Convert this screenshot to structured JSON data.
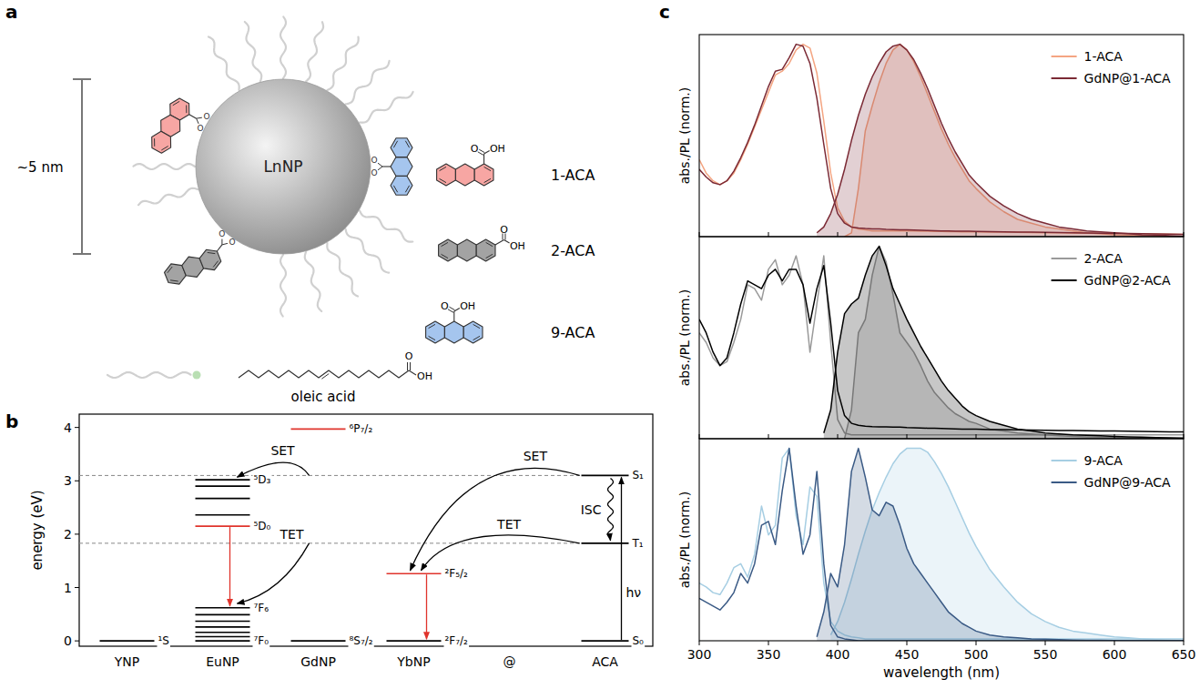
{
  "panel_labels": [
    "a",
    "b",
    "c"
  ],
  "schematic": {
    "particle": "LnNP",
    "size": "~5 nm",
    "ligands": [
      {
        "name": "1-ACA",
        "color": "#f7a6a3"
      },
      {
        "name": "2-ACA",
        "color": "#a3a3a3"
      },
      {
        "name": "9-ACA",
        "color": "#a5c5ee"
      }
    ],
    "capping": "oleic acid",
    "oxygen": "O",
    "hydroxyl": "OH"
  },
  "chart_data": [
    {
      "type": "energy_levels",
      "ylabel": "energy (eV)",
      "ylim": [
        -0.1,
        4.25
      ],
      "yticks": [
        0,
        1,
        2,
        3,
        4
      ],
      "categories": [
        "YNP",
        "EuNP",
        "GdNP",
        "YbNP",
        "@",
        "ACA"
      ],
      "levels": [
        [
          {
            "energy": 0,
            "label": "¹S",
            "color": "#000000"
          }
        ],
        [
          {
            "energy": 0,
            "label": "⁷F₀",
            "color": "#000000"
          },
          {
            "energy": 0.08,
            "color": "#000000"
          },
          {
            "energy": 0.16,
            "color": "#000000"
          },
          {
            "energy": 0.26,
            "color": "#000000"
          },
          {
            "energy": 0.37,
            "color": "#000000"
          },
          {
            "energy": 0.49,
            "color": "#000000"
          },
          {
            "energy": 0.62,
            "label": "⁷F₆",
            "color": "#000000"
          },
          {
            "energy": 2.15,
            "label": "⁵D₀",
            "color": "#e0342c"
          },
          {
            "energy": 2.36,
            "color": "#000000"
          },
          {
            "energy": 2.67,
            "color": "#000000"
          },
          {
            "energy": 2.9,
            "color": "#000000"
          },
          {
            "energy": 3.02,
            "label": "⁵D₃",
            "color": "#000000"
          }
        ],
        [
          {
            "energy": 0,
            "label": "⁸S₇/₂",
            "color": "#000000"
          },
          {
            "energy": 3.97,
            "label": "⁶P₇/₂",
            "color": "#e0342c"
          }
        ],
        [
          {
            "energy": 0,
            "label": "²F₇/₂",
            "color": "#000000"
          },
          {
            "energy": 1.26,
            "label": "²F₅/₂",
            "color": "#e0342c"
          }
        ],
        [],
        [
          {
            "energy": 0,
            "label": "S₀",
            "color": "#000000"
          },
          {
            "energy": 1.83,
            "label": "T₁",
            "color": "#000000"
          },
          {
            "energy": 3.1,
            "label": "S₁",
            "color": "#000000"
          }
        ]
      ],
      "annotations": [
        "SET",
        "TET",
        "SET",
        "TET",
        "ISC",
        "hν"
      ]
    },
    {
      "type": "line",
      "x": [
        300,
        305,
        310,
        315,
        320,
        325,
        330,
        335,
        340,
        345,
        350,
        355,
        360,
        365,
        370,
        375,
        380,
        385,
        390,
        395,
        400,
        405,
        410,
        415,
        420,
        425,
        430,
        435,
        440,
        445,
        450,
        455,
        460,
        465,
        470,
        475,
        480,
        485,
        490,
        495,
        500,
        510,
        520,
        530,
        540,
        550,
        560,
        570,
        580,
        590,
        600,
        610,
        620,
        630,
        640,
        650
      ],
      "xlim": [
        300,
        650
      ],
      "xticks": [
        300,
        350,
        400,
        450,
        500,
        550,
        600,
        650
      ],
      "ylim": [
        0,
        1.05
      ],
      "ylabel": "abs./PL (norm.)",
      "tick_labels": false,
      "legend": "upper right",
      "series": [
        {
          "name": "1-ACA",
          "color": "#f4a582",
          "absorption": [
            0.4,
            0.33,
            0.29,
            0.27,
            0.29,
            0.33,
            0.4,
            0.48,
            0.57,
            0.66,
            0.75,
            0.84,
            0.86,
            0.9,
            0.97,
            1.0,
            0.98,
            0.85,
            0.6,
            0.33,
            0.15,
            0.08,
            0.05,
            0.04,
            0.035,
            0.03,
            0.03,
            0.03,
            0.03,
            0.03,
            0.03,
            0.03,
            0.028,
            0.028,
            0.027,
            0.027,
            0.026,
            0.026,
            0.025,
            0.025,
            0.025,
            0.024,
            0.023,
            0.022,
            0.021,
            0.02,
            0.02,
            0.019,
            0.018,
            0.017,
            0.016,
            0.015,
            0.015,
            0.014,
            0.013,
            0.012
          ],
          "emission": [
            null,
            null,
            null,
            null,
            null,
            null,
            null,
            null,
            null,
            null,
            null,
            null,
            null,
            null,
            null,
            null,
            null,
            null,
            null,
            null,
            null,
            0.0,
            0.02,
            0.25,
            0.55,
            0.68,
            0.8,
            0.9,
            0.97,
            1.0,
            0.97,
            0.91,
            0.83,
            0.74,
            0.65,
            0.56,
            0.48,
            0.41,
            0.35,
            0.29,
            0.25,
            0.18,
            0.13,
            0.09,
            0.07,
            0.05,
            0.04,
            0.03,
            0.02,
            0.015,
            0.01,
            0.008,
            0.006,
            0.004,
            0.002,
            0.0
          ]
        },
        {
          "name": "GdNP@1-ACA",
          "color": "#7b2a35",
          "absorption": [
            0.35,
            0.31,
            0.28,
            0.27,
            0.29,
            0.34,
            0.41,
            0.49,
            0.58,
            0.68,
            0.78,
            0.86,
            0.87,
            0.93,
            1.0,
            0.99,
            0.9,
            0.72,
            0.48,
            0.25,
            0.12,
            0.07,
            0.05,
            0.045,
            0.042,
            0.04,
            0.04,
            0.038,
            0.037,
            0.036,
            0.035,
            0.034,
            0.033,
            0.032,
            0.031,
            0.03,
            0.03,
            0.029,
            0.028,
            0.028,
            0.027,
            0.026,
            0.025,
            0.024,
            0.023,
            0.022,
            0.021,
            0.02,
            0.019,
            0.018,
            0.017,
            0.016,
            0.015,
            0.014,
            0.013,
            0.012
          ],
          "emission": [
            null,
            null,
            null,
            null,
            null,
            null,
            null,
            null,
            null,
            null,
            null,
            null,
            null,
            null,
            null,
            null,
            null,
            0.02,
            0.05,
            0.12,
            0.22,
            0.35,
            0.5,
            0.63,
            0.74,
            0.83,
            0.9,
            0.96,
            0.99,
            1.0,
            0.97,
            0.92,
            0.85,
            0.77,
            0.68,
            0.59,
            0.51,
            0.44,
            0.38,
            0.32,
            0.28,
            0.21,
            0.16,
            0.12,
            0.09,
            0.07,
            0.05,
            0.04,
            0.03,
            0.025,
            0.02,
            0.015,
            0.01,
            0.008,
            0.005,
            0.003
          ]
        }
      ]
    },
    {
      "type": "line",
      "x": [
        300,
        305,
        310,
        315,
        320,
        325,
        330,
        335,
        340,
        345,
        350,
        355,
        360,
        365,
        370,
        375,
        380,
        385,
        390,
        395,
        400,
        405,
        410,
        415,
        420,
        425,
        430,
        435,
        440,
        445,
        450,
        455,
        460,
        465,
        470,
        475,
        480,
        485,
        490,
        495,
        500,
        510,
        520,
        530,
        540,
        550,
        560,
        570,
        580,
        590,
        600,
        610,
        620,
        630,
        640,
        650
      ],
      "xlim": [
        300,
        650
      ],
      "xticks": [
        300,
        350,
        400,
        450,
        500,
        550,
        600,
        650
      ],
      "ylim": [
        0,
        1.05
      ],
      "ylabel": "abs./PL (norm.)",
      "tick_labels": false,
      "legend": "upper right",
      "series": [
        {
          "name": "2-ACA",
          "color": "#9a9a9a",
          "absorption": [
            0.55,
            0.5,
            0.42,
            0.38,
            0.4,
            0.5,
            0.62,
            0.8,
            0.78,
            0.72,
            0.88,
            0.93,
            0.8,
            0.85,
            0.95,
            0.8,
            0.45,
            0.7,
            0.95,
            0.5,
            0.1,
            0.03,
            0.02,
            0.02,
            0.02,
            0.02,
            0.02,
            0.02,
            0.02,
            0.02,
            0.02,
            0.02,
            0.02,
            0.02,
            0.02,
            0.02,
            0.02,
            0.02,
            0.02,
            0.02,
            0.02,
            0.02,
            0.02,
            0.02,
            0.02,
            0.02,
            0.02,
            0.02,
            0.02,
            0.02,
            0.02,
            0.02,
            0.02,
            0.02,
            0.02,
            0.02
          ],
          "emission": [
            null,
            null,
            null,
            null,
            null,
            null,
            null,
            null,
            null,
            null,
            null,
            null,
            null,
            null,
            null,
            null,
            null,
            null,
            null,
            null,
            null,
            0.0,
            0.15,
            0.55,
            0.62,
            0.85,
            1.0,
            0.92,
            0.75,
            0.55,
            0.5,
            0.45,
            0.38,
            0.3,
            0.24,
            0.2,
            0.16,
            0.13,
            0.11,
            0.09,
            0.08,
            0.05,
            0.04,
            0.03,
            0.025,
            0.02,
            0.015,
            0.012,
            0.01,
            0.008,
            0.006,
            0.005,
            0.004,
            0.003,
            0.002,
            0.0
          ]
        },
        {
          "name": "GdNP@2-ACA",
          "color": "#000000",
          "absorption": [
            0.62,
            0.55,
            0.45,
            0.38,
            0.42,
            0.55,
            0.7,
            0.82,
            0.8,
            0.78,
            0.85,
            0.88,
            0.82,
            0.88,
            0.88,
            0.8,
            0.6,
            0.78,
            0.9,
            0.6,
            0.25,
            0.12,
            0.08,
            0.07,
            0.065,
            0.063,
            0.062,
            0.061,
            0.06,
            0.06,
            0.058,
            0.057,
            0.056,
            0.055,
            0.054,
            0.053,
            0.052,
            0.051,
            0.05,
            0.05,
            0.049,
            0.048,
            0.047,
            0.046,
            0.045,
            0.044,
            0.043,
            0.042,
            0.041,
            0.04,
            0.04,
            0.039,
            0.038,
            0.037,
            0.036,
            0.035
          ],
          "emission": [
            null,
            null,
            null,
            null,
            null,
            null,
            null,
            null,
            null,
            null,
            null,
            null,
            null,
            null,
            null,
            null,
            null,
            null,
            0.03,
            0.15,
            0.45,
            0.65,
            0.7,
            0.73,
            0.85,
            0.95,
            1.0,
            0.9,
            0.78,
            0.7,
            0.62,
            0.55,
            0.48,
            0.42,
            0.36,
            0.3,
            0.25,
            0.21,
            0.17,
            0.14,
            0.12,
            0.09,
            0.07,
            0.05,
            0.04,
            0.03,
            0.025,
            0.02,
            0.018,
            0.015,
            0.012,
            0.01,
            0.008,
            0.006,
            0.005,
            0.004
          ]
        }
      ]
    },
    {
      "type": "line",
      "x": [
        300,
        305,
        310,
        315,
        320,
        325,
        330,
        335,
        340,
        345,
        350,
        355,
        360,
        365,
        370,
        375,
        380,
        385,
        390,
        395,
        400,
        405,
        410,
        415,
        420,
        425,
        430,
        435,
        440,
        445,
        450,
        455,
        460,
        465,
        470,
        475,
        480,
        485,
        490,
        495,
        500,
        510,
        520,
        530,
        540,
        550,
        560,
        570,
        580,
        590,
        600,
        610,
        620,
        630,
        640,
        650
      ],
      "xlim": [
        300,
        650
      ],
      "xticks": [
        300,
        350,
        400,
        450,
        500,
        550,
        600,
        650
      ],
      "ylim": [
        0,
        1.05
      ],
      "xlabel": "wavelength (nm)",
      "ylabel": "abs./PL (norm.)",
      "tick_labels": "x",
      "legend": "upper right",
      "series": [
        {
          "name": "9-ACA",
          "color": "#a6cee3",
          "absorption": [
            0.3,
            0.28,
            0.25,
            0.24,
            0.3,
            0.38,
            0.4,
            0.33,
            0.45,
            0.7,
            0.55,
            0.6,
            0.95,
            1.0,
            0.65,
            0.5,
            0.8,
            0.75,
            0.3,
            0.1,
            0.05,
            0.03,
            0.02,
            0.015,
            0.01,
            0.01,
            0.01,
            0.01,
            0.01,
            0.01,
            0.01,
            0.01,
            0.01,
            0.01,
            0.01,
            0.01,
            0.01,
            0.01,
            0.01,
            0.01,
            0.01,
            0.01,
            0.01,
            0.01,
            0.01,
            0.01,
            0.01,
            0.01,
            0.01,
            0.01,
            0.01,
            0.01,
            0.01,
            0.01,
            0.01,
            0.01
          ],
          "emission": [
            null,
            null,
            null,
            null,
            null,
            null,
            null,
            null,
            null,
            null,
            null,
            null,
            null,
            null,
            null,
            null,
            null,
            null,
            null,
            0.03,
            0.1,
            0.2,
            0.32,
            0.45,
            0.57,
            0.68,
            0.77,
            0.85,
            0.92,
            0.97,
            1.0,
            1.0,
            1.0,
            0.98,
            0.93,
            0.87,
            0.8,
            0.72,
            0.64,
            0.56,
            0.49,
            0.37,
            0.28,
            0.2,
            0.14,
            0.1,
            0.07,
            0.05,
            0.04,
            0.03,
            0.02,
            0.015,
            0.01,
            0.006,
            0.003,
            0.0
          ]
        },
        {
          "name": "GdNP@9-ACA",
          "color": "#3a5a85",
          "absorption": [
            0.22,
            0.2,
            0.18,
            0.16,
            0.2,
            0.25,
            0.35,
            0.3,
            0.4,
            0.6,
            0.62,
            0.5,
            0.78,
            1.0,
            0.7,
            0.45,
            0.55,
            0.88,
            0.4,
            0.08,
            0.02,
            0.01,
            0.005,
            0,
            0,
            0,
            0,
            0,
            0,
            0,
            0,
            0,
            0,
            0,
            0,
            0,
            0,
            0,
            0,
            0,
            0,
            0,
            0,
            0,
            0,
            0,
            0,
            0,
            0,
            0,
            0,
            0,
            0,
            0,
            0,
            0
          ],
          "emission": [
            null,
            null,
            null,
            null,
            null,
            null,
            null,
            null,
            null,
            null,
            null,
            null,
            null,
            null,
            null,
            null,
            null,
            0.02,
            0.15,
            0.35,
            0.28,
            0.5,
            0.88,
            1.0,
            0.85,
            0.68,
            0.65,
            0.72,
            0.7,
            0.6,
            0.48,
            0.4,
            0.35,
            0.3,
            0.25,
            0.2,
            0.15,
            0.12,
            0.09,
            0.07,
            0.05,
            0.03,
            0.02,
            0.015,
            0.01,
            0.008,
            0.006,
            0.004,
            0.003,
            0.002,
            0.001,
            0,
            0,
            0,
            0,
            0
          ]
        }
      ]
    }
  ]
}
